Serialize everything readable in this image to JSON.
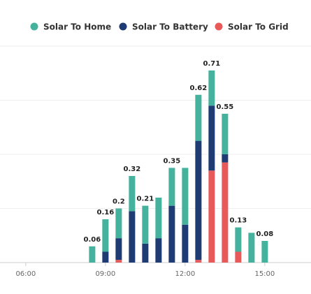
{
  "chart_data": {
    "type": "stacked-bar",
    "x": [
      8.5,
      9,
      9.5,
      10,
      10.5,
      11,
      11.5,
      12,
      12.5,
      13,
      13.5,
      14,
      14.5,
      15
    ],
    "series": [
      {
        "name": "Solar To Home",
        "color": "#45b29d",
        "values": [
          0.06,
          0.12,
          0.11,
          0.13,
          0.14,
          0.15,
          0.14,
          0.21,
          0.17,
          0.13,
          0.15,
          0.09,
          0.11,
          0.08
        ]
      },
      {
        "name": "Solar To Battery",
        "color": "#1f3b73",
        "values": [
          0,
          0.04,
          0.08,
          0.19,
          0.07,
          0.09,
          0.21,
          0.14,
          0.44,
          0.24,
          0.03,
          0,
          0,
          0
        ]
      },
      {
        "name": "Solar To Grid",
        "color": "#e85a5a",
        "values": [
          0,
          0,
          0.01,
          0,
          0,
          0,
          0,
          0,
          0.01,
          0.34,
          0.37,
          0.04,
          0,
          0
        ]
      }
    ],
    "total_labels": [
      0.06,
      0.16,
      0.2,
      0.32,
      0.21,
      null,
      0.35,
      null,
      0.62,
      0.71,
      0.55,
      0.13,
      null,
      0.08
    ],
    "xlim": [
      5.03,
      16.74
    ],
    "xticks": [
      {
        "value": 6,
        "label": "06:00"
      },
      {
        "value": 9,
        "label": "09:00"
      },
      {
        "value": 12,
        "label": "12:00"
      },
      {
        "value": 15,
        "label": "15:00"
      }
    ],
    "ylim": [
      0,
      0.8
    ],
    "yticks": [
      0,
      0.2,
      0.4,
      0.6,
      0.8
    ],
    "grid": true
  }
}
